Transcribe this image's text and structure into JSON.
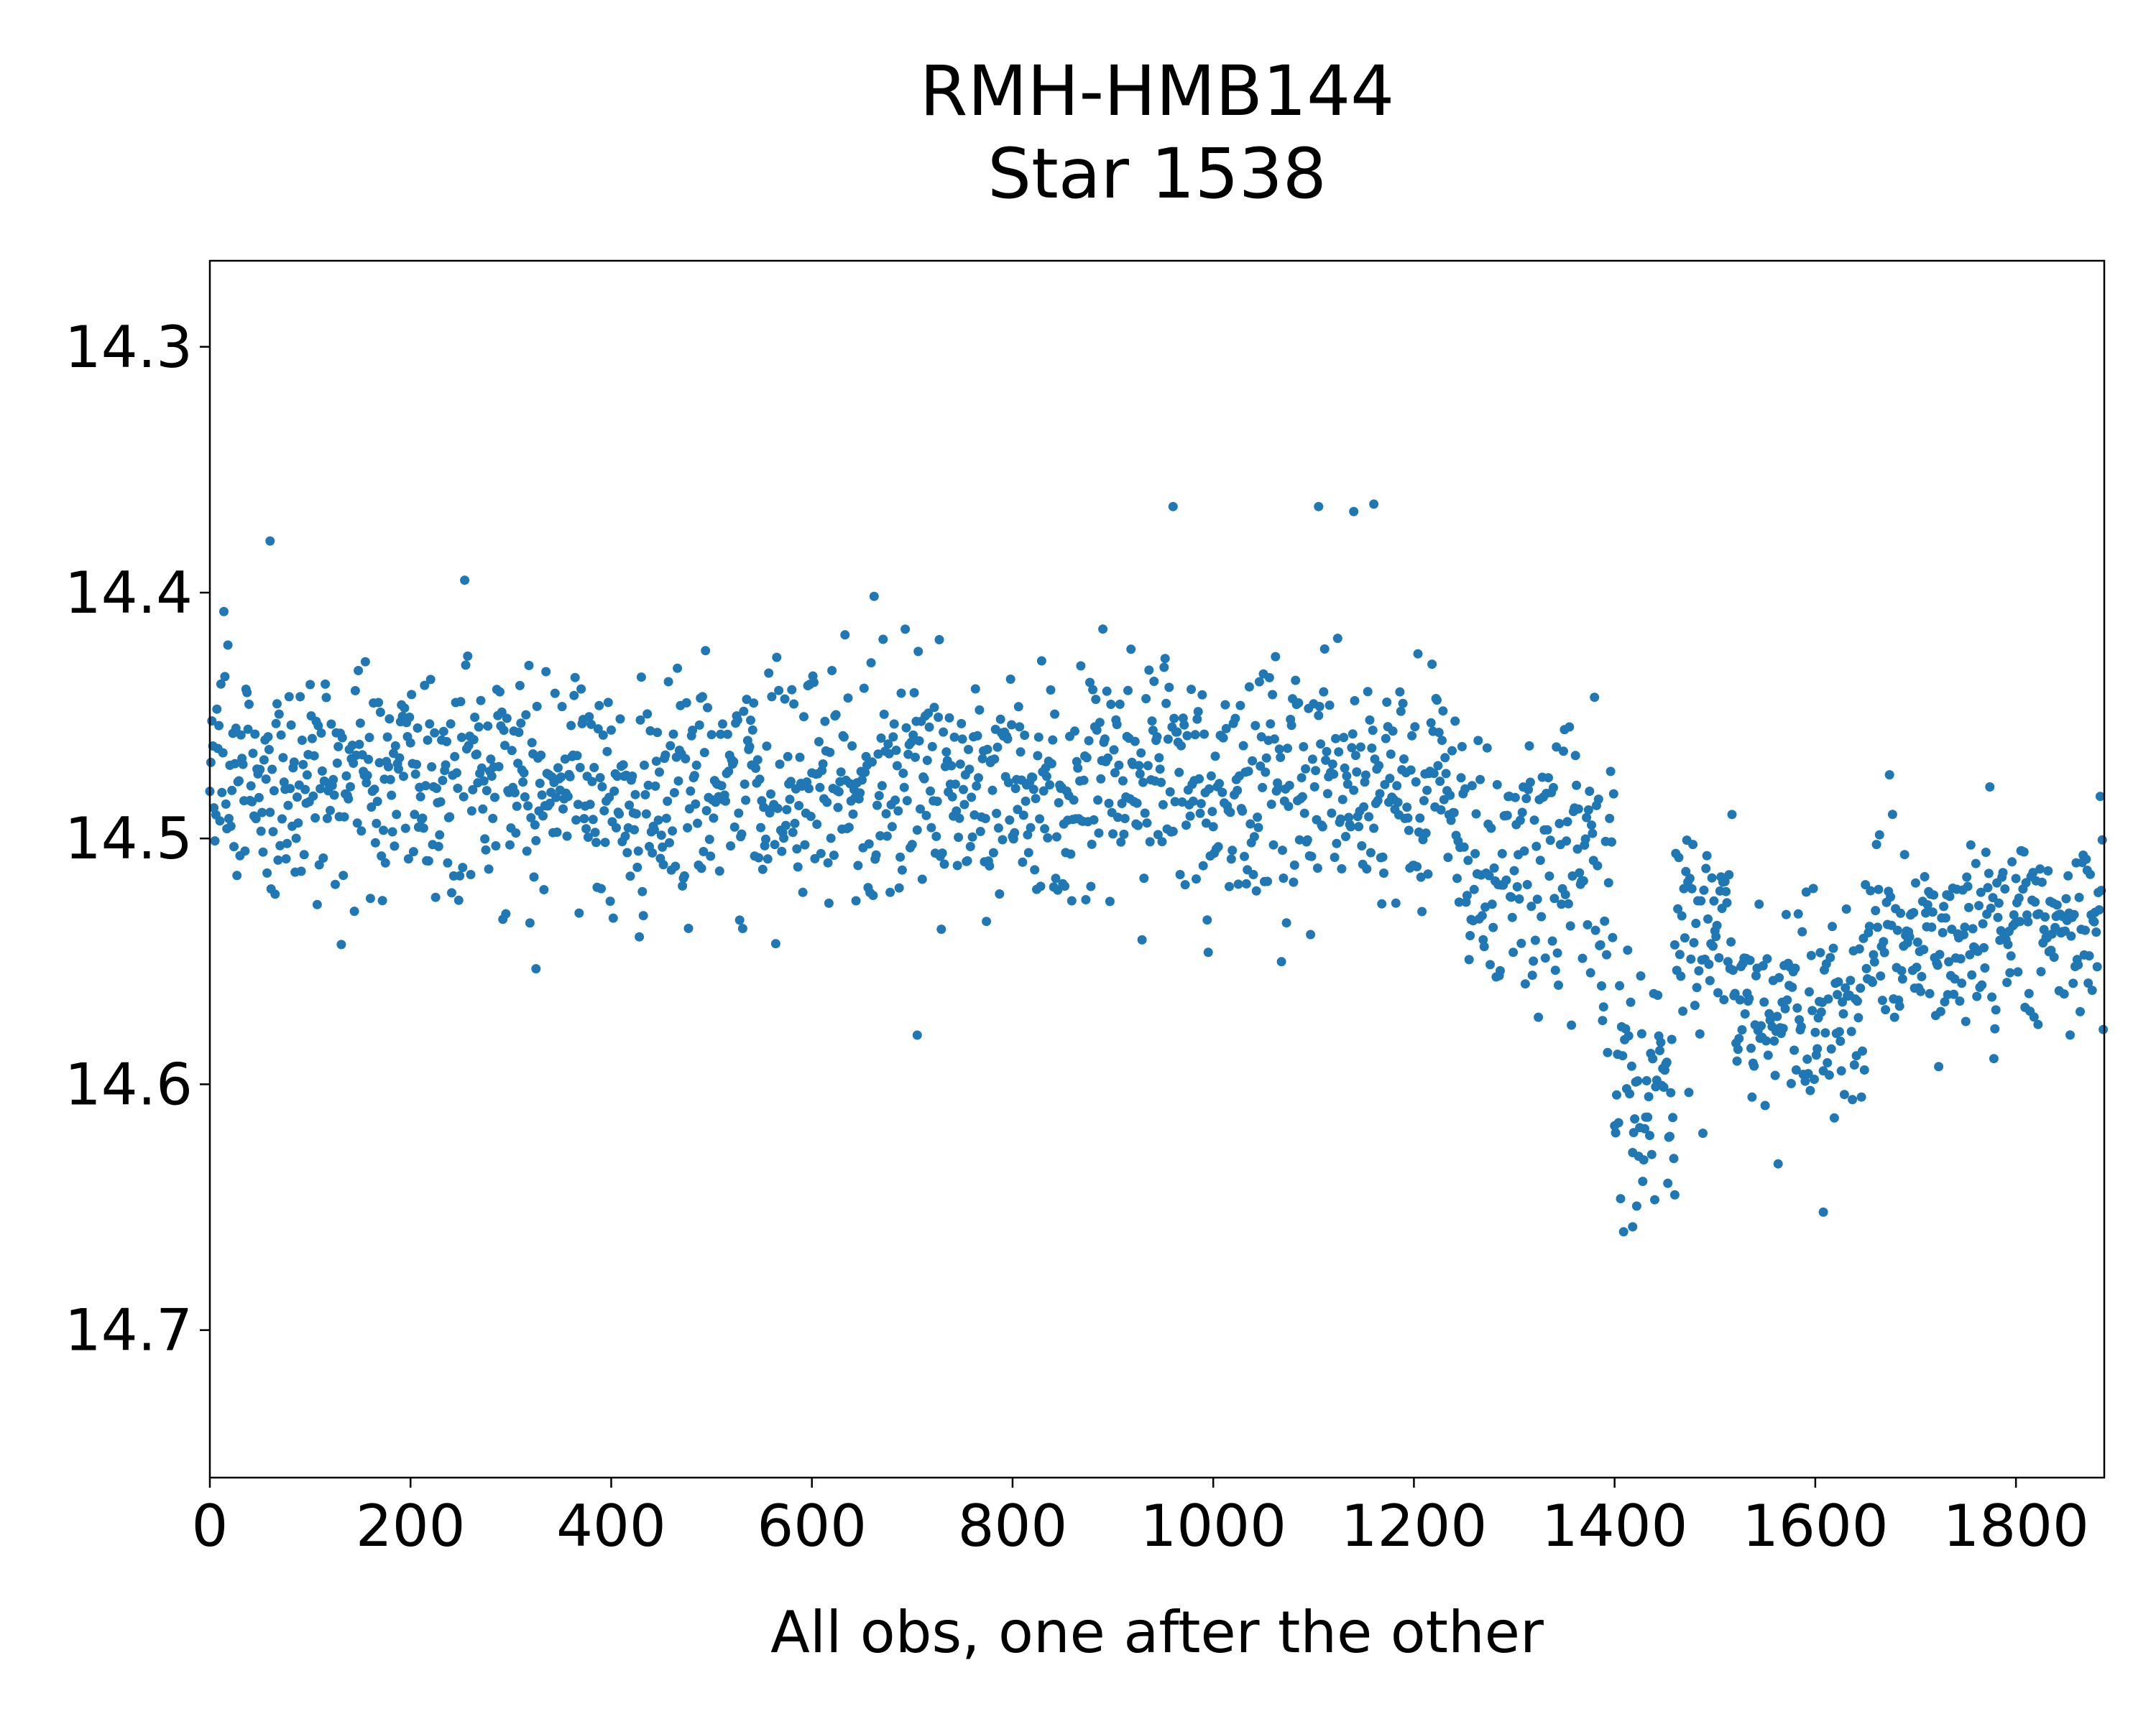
{
  "chart_data": {
    "type": "scatter",
    "title": [
      "RMH-HMB144",
      "Star 1538"
    ],
    "xlabel": "All obs, one after the other",
    "ylabel": "",
    "xlim": [
      0,
      1888
    ],
    "ylim": [
      14.76,
      14.265
    ],
    "y_inverted": true,
    "xticks": [
      0,
      200,
      400,
      600,
      800,
      1000,
      1200,
      1400,
      1600,
      1800
    ],
    "yticks": [
      14.3,
      14.4,
      14.5,
      14.6,
      14.7
    ],
    "ytick_labels": [
      "14.3",
      "14.4",
      "14.5",
      "14.6",
      "14.7"
    ],
    "grid": false,
    "legend": "none",
    "point_color": "#1f77b4",
    "n_points": 1888,
    "trend_segments": [
      {
        "x_start": 0,
        "x_end": 1250,
        "mean_y": 14.478,
        "scatter_sd": 0.024
      },
      {
        "x_start": 1250,
        "x_end": 1400,
        "mean_y": 14.515,
        "scatter_sd": 0.03
      },
      {
        "x_start": 1400,
        "x_end": 1460,
        "mean_y": 14.605,
        "scatter_sd": 0.022
      },
      {
        "x_start": 1460,
        "x_end": 1520,
        "mean_y": 14.54,
        "scatter_sd": 0.025
      },
      {
        "x_start": 1520,
        "x_end": 1650,
        "mean_y": 14.575,
        "scatter_sd": 0.02
      },
      {
        "x_start": 1650,
        "x_end": 1888,
        "mean_y": 14.535,
        "scatter_sd": 0.02
      }
    ],
    "notable_points": [
      {
        "x": 60,
        "y": 14.379
      },
      {
        "x": 960,
        "y": 14.365
      },
      {
        "x": 1105,
        "y": 14.365
      },
      {
        "x": 1140,
        "y": 14.367
      },
      {
        "x": 1160,
        "y": 14.364
      },
      {
        "x": 1418,
        "y": 14.658
      },
      {
        "x": 1460,
        "y": 14.645
      },
      {
        "x": 1608,
        "y": 14.652
      },
      {
        "x": 705,
        "y": 14.58
      },
      {
        "x": 325,
        "y": 14.553
      }
    ]
  }
}
